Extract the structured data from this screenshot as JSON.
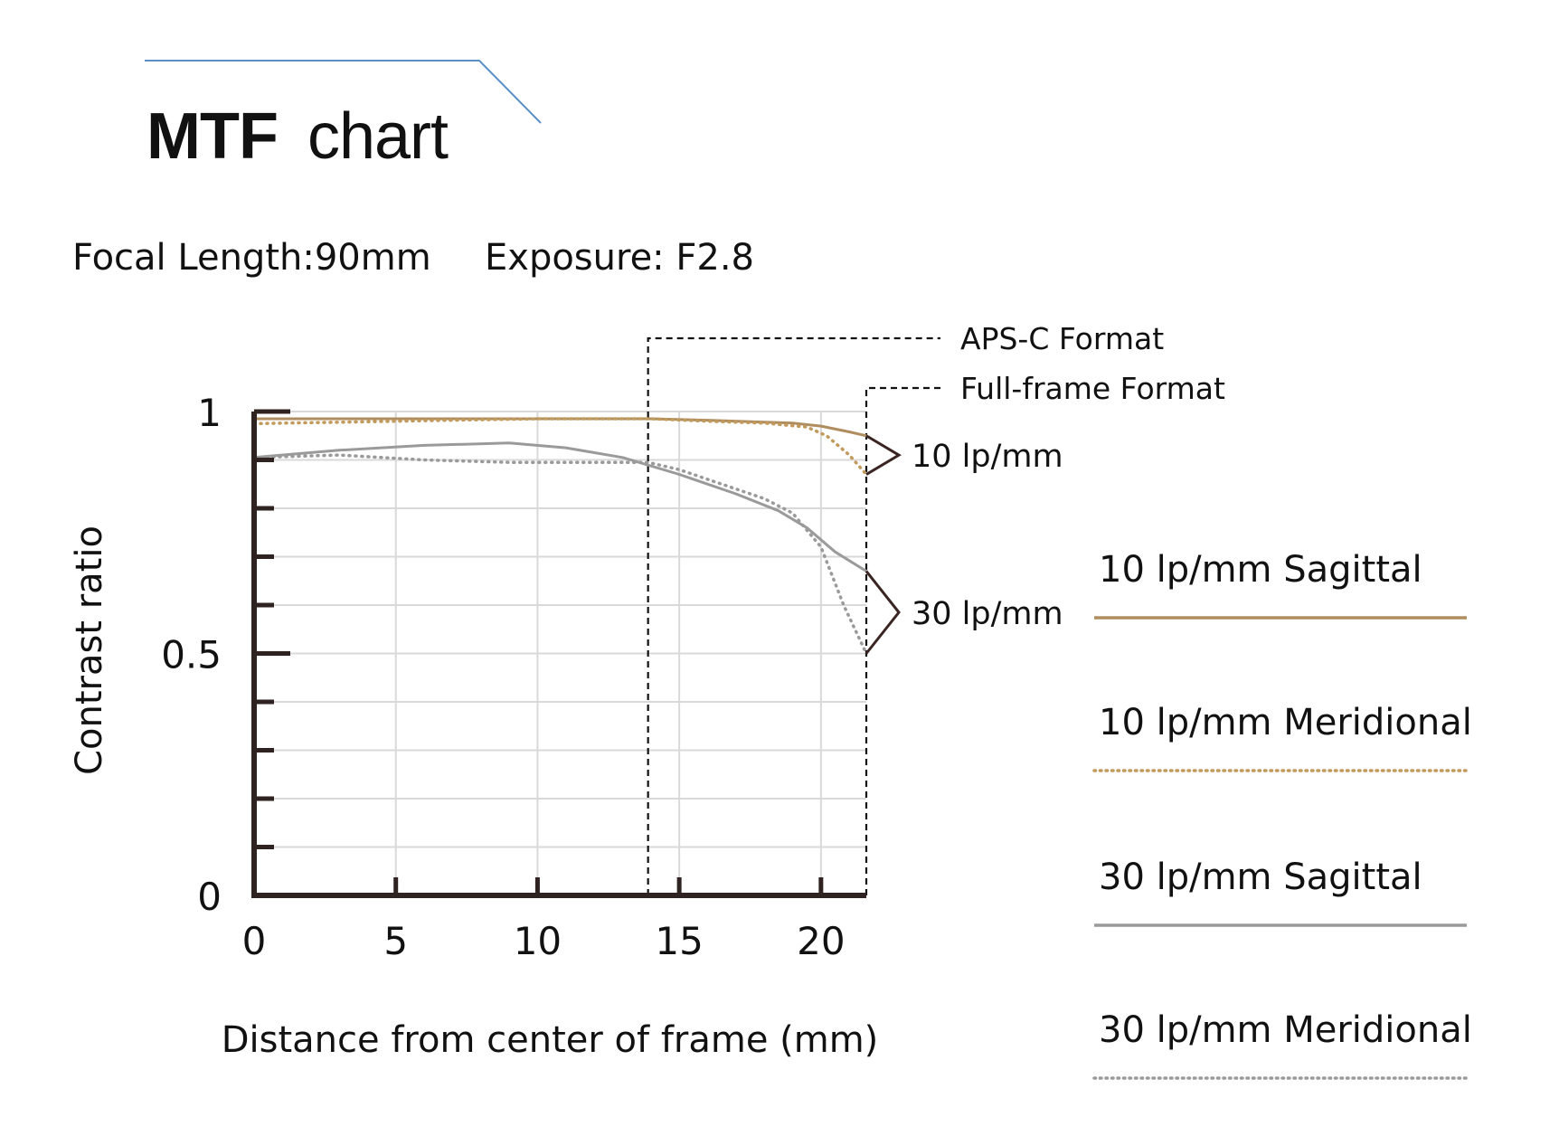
{
  "header": {
    "title_bold": "MTF",
    "title_rest": "chart",
    "focal_length": "Focal Length:90mm",
    "exposure": "Exposure: F2.8"
  },
  "colors": {
    "accent_line": "#5b8fc7",
    "sagittal_10": "#b08d5e",
    "meridional_10": "#c29a5c",
    "sagittal_30": "#9a9a9a",
    "meridional_30": "#9a9a9a",
    "axis": "#2e2320",
    "grid": "#d9d9d9"
  },
  "chart_data": {
    "type": "line",
    "title": "MTF chart",
    "xlabel": "Distance from center of frame (mm)",
    "ylabel": "Contrast ratio",
    "xlim": [
      0,
      21.6
    ],
    "ylim": [
      0,
      1
    ],
    "x_ticks": [
      0,
      5,
      10,
      15,
      20
    ],
    "x_tick_labels": [
      "0",
      "5",
      "10",
      "15",
      "20"
    ],
    "y_tick_labels": [
      {
        "value": 1,
        "label": "1"
      },
      {
        "value": 0.5,
        "label": "0.5"
      },
      {
        "value": 0,
        "label": "0"
      }
    ],
    "grid": true,
    "format_markers": [
      {
        "label": "APS-C Format",
        "x": 13.9
      },
      {
        "label": "Full-frame Format",
        "x": 21.6
      }
    ],
    "group_labels": [
      {
        "label": "10 lp/mm",
        "y_range": [
          0.87,
          0.95
        ]
      },
      {
        "label": "30 lp/mm",
        "y_range": [
          0.5,
          0.67
        ]
      }
    ],
    "series": [
      {
        "name": "10 lp/mm Sagittal",
        "style": "solid",
        "color": "#b08d5e",
        "x": [
          0,
          5,
          10,
          14,
          16,
          18,
          19,
          20,
          21,
          21.6
        ],
        "y": [
          0.985,
          0.985,
          0.985,
          0.985,
          0.982,
          0.978,
          0.976,
          0.97,
          0.958,
          0.95
        ]
      },
      {
        "name": "10 lp/mm Meridional",
        "style": "dotted",
        "color": "#c29a5c",
        "x": [
          0,
          5,
          10,
          14,
          16,
          18,
          19.5,
          20.2,
          21,
          21.6
        ],
        "y": [
          0.975,
          0.98,
          0.985,
          0.985,
          0.98,
          0.976,
          0.968,
          0.95,
          0.91,
          0.87
        ]
      },
      {
        "name": "30 lp/mm Sagittal",
        "style": "solid",
        "color": "#9a9a9a",
        "x": [
          0,
          3,
          6,
          9,
          11,
          13,
          15,
          17,
          18.5,
          19.5,
          20.5,
          21.6
        ],
        "y": [
          0.905,
          0.92,
          0.93,
          0.935,
          0.925,
          0.905,
          0.87,
          0.83,
          0.795,
          0.76,
          0.71,
          0.67
        ]
      },
      {
        "name": "30 lp/mm Meridional",
        "style": "dotted",
        "color": "#9a9a9a",
        "x": [
          0,
          3,
          6,
          9,
          12,
          13.9,
          15,
          16.5,
          18,
          19,
          20,
          20.8,
          21.6
        ],
        "y": [
          0.905,
          0.91,
          0.9,
          0.895,
          0.895,
          0.895,
          0.88,
          0.85,
          0.82,
          0.79,
          0.72,
          0.6,
          0.5
        ]
      }
    ],
    "legend_position": "right"
  }
}
